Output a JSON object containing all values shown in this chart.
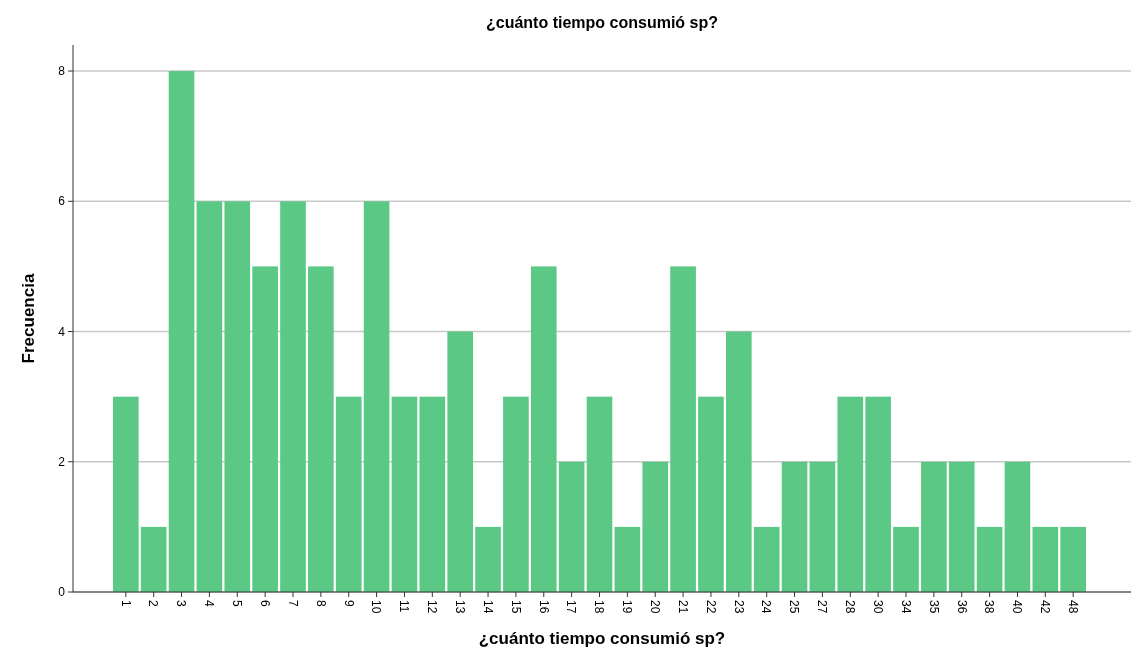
{
  "chart_data": {
    "type": "bar",
    "title": "¿cuánto tiempo consumió sp?",
    "xlabel": "¿cuánto tiempo consumió sp?",
    "ylabel": "Frecuencia",
    "categories": [
      "1",
      "2",
      "3",
      "4",
      "5",
      "6",
      "7",
      "8",
      "9",
      "10",
      "11",
      "12",
      "13",
      "14",
      "15",
      "16",
      "17",
      "18",
      "19",
      "20",
      "21",
      "22",
      "23",
      "24",
      "25",
      "27",
      "28",
      "30",
      "34",
      "35",
      "36",
      "38",
      "40",
      "42",
      "48"
    ],
    "values": [
      3,
      1,
      8,
      6,
      6,
      5,
      6,
      5,
      3,
      6,
      3,
      3,
      4,
      1,
      3,
      5,
      2,
      3,
      1,
      2,
      5,
      3,
      4,
      1,
      2,
      2,
      3,
      3,
      1,
      2,
      2,
      1,
      2,
      1,
      1
    ],
    "color": "#5bc985",
    "ylim": [
      0,
      8.4
    ],
    "yticks": [
      0,
      2,
      4,
      6,
      8
    ],
    "grid": "y"
  }
}
